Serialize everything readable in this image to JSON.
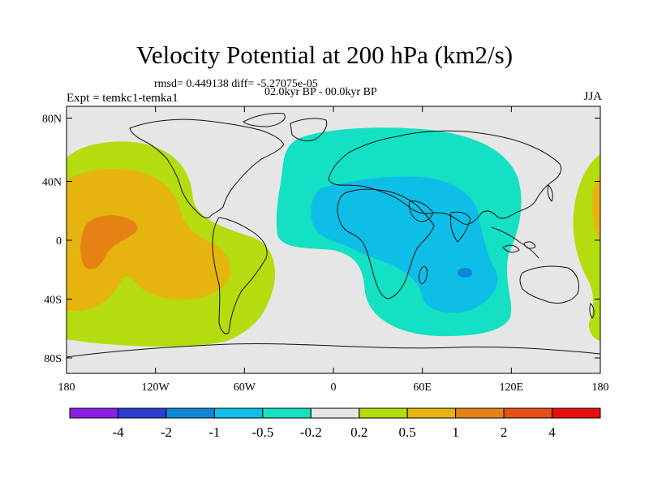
{
  "title": "Velocity Potential at 200 hPa (km2/s)",
  "stats_line": "rmsd= 0.449138 diff= -5.27075e-05",
  "period_line": "02.0kyr BP - 00.0kyr BP",
  "experiment": "Expt = temkc1-temka1",
  "season": "JJA",
  "y_ticks": [
    "80N",
    "40N",
    "0",
    "40S",
    "80S"
  ],
  "x_ticks": [
    "180",
    "120W",
    "60W",
    "0",
    "60E",
    "120E",
    "180"
  ],
  "colorbar": {
    "colors": [
      "#8c1ee6",
      "#2d3cd2",
      "#0f87d7",
      "#0fbee6",
      "#14e1c3",
      "#e6e6e6",
      "#b4dc0f",
      "#e6b40f",
      "#e68214",
      "#e65014",
      "#e60f0f"
    ],
    "labels": [
      "-4",
      "-2",
      "-1",
      "-0.5",
      "-0.2",
      "0.2",
      "0.5",
      "1",
      "2",
      "4"
    ]
  },
  "map_colors": {
    "background": "#e6e6e6",
    "pos_02": "#b4dc0f",
    "pos_05": "#e6b40f",
    "pos_1": "#e68214",
    "neg_02": "#14e1c3",
    "neg_05": "#0fbee6",
    "neg_1": "#0f87d7",
    "coast": "#111111"
  }
}
